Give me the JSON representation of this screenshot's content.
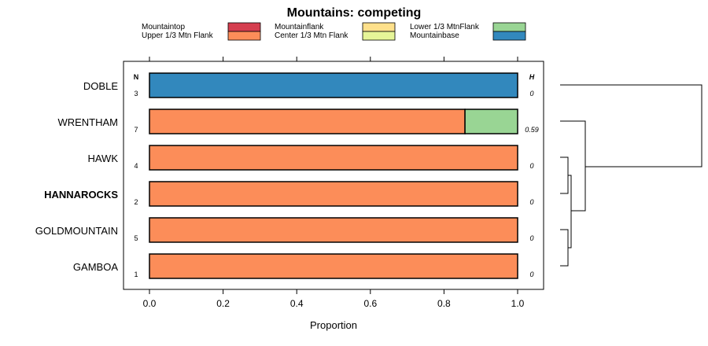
{
  "chart_data": {
    "type": "bar",
    "orientation": "horizontal",
    "stacked": true,
    "title": "Mountains: competing",
    "xlabel": "Proportion",
    "ylabel": "",
    "xlim": [
      0,
      1
    ],
    "xticks": [
      "0.0",
      "0.2",
      "0.4",
      "0.6",
      "0.8",
      "1.0"
    ],
    "n_header": "N",
    "h_header": "H",
    "legend_position": "top",
    "legend": [
      {
        "name": "Mountaintop",
        "color": "#d53e4f"
      },
      {
        "name": "Upper 1/3 Mtn Flank",
        "color": "#fc8d59"
      },
      {
        "name": "Mountainflank",
        "color": "#fee08b"
      },
      {
        "name": "Center 1/3 Mtn Flank",
        "color": "#e6f598"
      },
      {
        "name": "Lower 1/3 MtnFlank",
        "color": "#99d594"
      },
      {
        "name": "Mountainbase",
        "color": "#3288bd"
      }
    ],
    "categories": [
      "DOBLE",
      "WRENTHAM",
      "HAWK",
      "HANNAROCKS",
      "GOLDMOUNTAIN",
      "GAMBOA"
    ],
    "highlight_category": "HANNAROCKS",
    "n": [
      "3",
      "7",
      "4",
      "2",
      "5",
      "1"
    ],
    "h": [
      "0",
      "0.59",
      "0",
      "0",
      "0",
      "0"
    ],
    "series": [
      {
        "name": "Upper 1/3 Mtn Flank",
        "values": [
          0,
          0.857,
          1,
          1,
          1,
          1
        ]
      },
      {
        "name": "Lower 1/3 MtnFlank",
        "values": [
          0,
          0.143,
          0,
          0,
          0,
          0
        ]
      },
      {
        "name": "Mountainbase",
        "values": [
          1,
          0,
          0,
          0,
          0,
          0
        ]
      }
    ],
    "dendrogram": true
  }
}
